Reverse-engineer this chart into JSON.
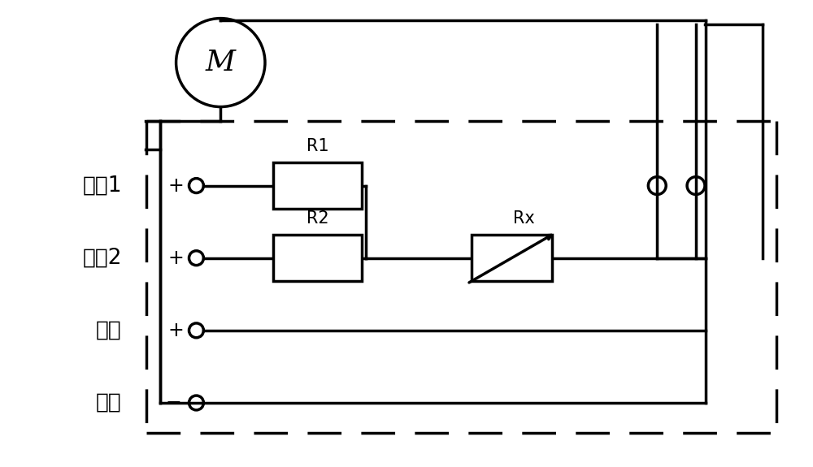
{
  "bg_color": "#ffffff",
  "line_color": "#000000",
  "figsize": [
    10.0,
    5.75
  ],
  "dpi": 100,
  "motor_label": "M",
  "labels": [
    "低速1",
    "低速2",
    "高速",
    "接地"
  ],
  "R1_label": "R1",
  "R2_label": "R2",
  "Rx_label": "Rx",
  "plus_sign": "+",
  "minus_sign": "−"
}
